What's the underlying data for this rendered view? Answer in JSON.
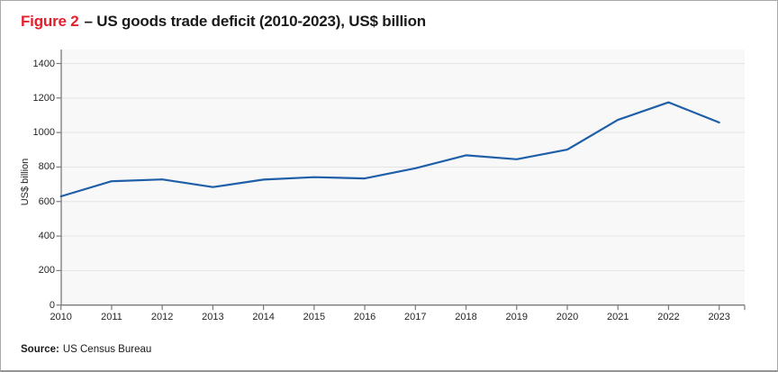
{
  "header": {
    "figure_label": "Figure 2",
    "title_rest": "– US goods trade deficit (2010-2023), US$ billion"
  },
  "chart_data": {
    "type": "line",
    "title": "Figure 2 – US goods trade deficit (2010-2023), US$ billion",
    "categories": [
      "2010",
      "2011",
      "2012",
      "2013",
      "2014",
      "2015",
      "2016",
      "2017",
      "2018",
      "2019",
      "2020",
      "2021",
      "2022",
      "2023"
    ],
    "values": [
      630,
      718,
      728,
      684,
      727,
      741,
      734,
      793,
      868,
      845,
      901,
      1073,
      1175,
      1058
    ],
    "series_name": "US goods trade deficit",
    "xlabel": "",
    "ylabel": "US$ billion",
    "ylim": [
      0,
      1400
    ],
    "yticks": [
      0,
      200,
      400,
      600,
      800,
      1000,
      1200,
      1400
    ],
    "grid": "horizontal",
    "legend": "none",
    "line_color": "#1f5fa8",
    "plot_background": "#f8f8f8",
    "gridline_color": "#e4e4e4",
    "axis_color": "#7a7a7a"
  },
  "source": {
    "label": "Source:",
    "text": "US Census Bureau"
  },
  "colors": {
    "figure_label_red": "#e4202c",
    "title_text": "#1a1a1a",
    "frame_border": "#a8a8a8"
  }
}
